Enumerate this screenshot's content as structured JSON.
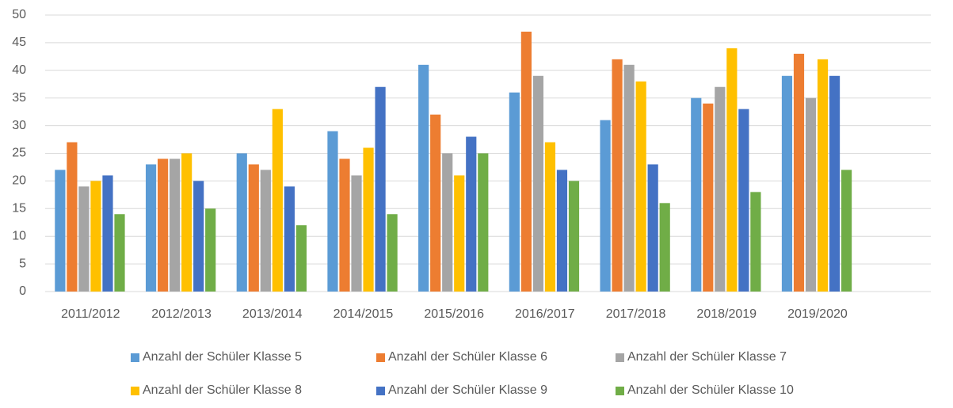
{
  "chart_data": {
    "type": "bar",
    "categories": [
      "2011/2012",
      "2012/2013",
      "2013/2014",
      "2014/2015",
      "2015/2016",
      "2016/2017",
      "2017/2018",
      "2018/2019",
      "2019/2020",
      null
    ],
    "series": [
      {
        "name": "Anzahl der Schüler Klasse 5",
        "color": "#5b9bd5",
        "values": [
          22,
          23,
          25,
          29,
          41,
          36,
          31,
          35,
          39,
          null
        ]
      },
      {
        "name": "Anzahl der Schüler Klasse 6",
        "color": "#ed7d31",
        "values": [
          27,
          24,
          23,
          24,
          32,
          47,
          42,
          34,
          43,
          null
        ]
      },
      {
        "name": "Anzahl der Schüler Klasse 7",
        "color": "#a5a5a5",
        "values": [
          19,
          24,
          22,
          21,
          25,
          39,
          41,
          37,
          35,
          null
        ]
      },
      {
        "name": "Anzahl der Schüler Klasse 8",
        "color": "#ffc000",
        "values": [
          20,
          25,
          33,
          26,
          21,
          27,
          38,
          44,
          42,
          null
        ]
      },
      {
        "name": "Anzahl der Schüler Klasse 9",
        "color": "#4472c4",
        "values": [
          21,
          20,
          19,
          37,
          28,
          22,
          23,
          33,
          39,
          null
        ]
      },
      {
        "name": "Anzahl der Schüler Klasse 10",
        "color": "#70ad47",
        "values": [
          14,
          15,
          12,
          14,
          25,
          20,
          16,
          18,
          22,
          null
        ]
      }
    ],
    "ylim": [
      0,
      50
    ],
    "yticks": [
      0,
      5,
      10,
      15,
      20,
      25,
      30,
      35,
      40,
      45,
      50
    ],
    "grid": true,
    "legend": "bottom"
  }
}
